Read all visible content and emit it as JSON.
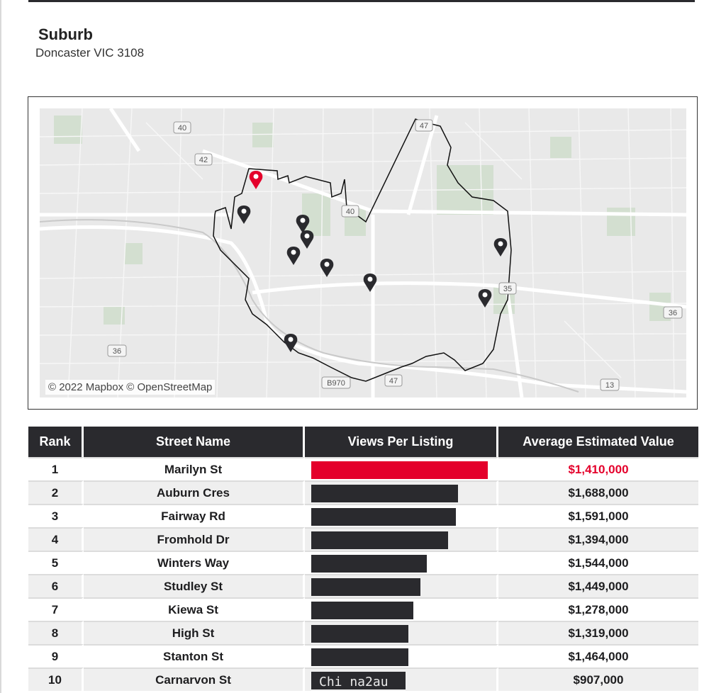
{
  "header": {
    "label": "Suburb",
    "suburb": "Doncaster VIC 3108"
  },
  "map": {
    "attribution": "© 2022 Mapbox © OpenStreetMap",
    "road_shields": [
      "40",
      "42",
      "40",
      "47",
      "35",
      "36",
      "36",
      "B970",
      "47",
      "13"
    ]
  },
  "table": {
    "columns": [
      "Rank",
      "Street Name",
      "Views Per Listing",
      "Average Estimated Value"
    ],
    "rows": [
      {
        "rank": "1",
        "street": "Marilyn St",
        "views_fraction": 1.0,
        "value": "$1,410,000"
      },
      {
        "rank": "2",
        "street": "Auburn Cres",
        "views_fraction": 0.83,
        "value": "$1,688,000"
      },
      {
        "rank": "3",
        "street": "Fairway Rd",
        "views_fraction": 0.82,
        "value": "$1,591,000"
      },
      {
        "rank": "4",
        "street": "Fromhold Dr",
        "views_fraction": 0.776,
        "value": "$1,394,000"
      },
      {
        "rank": "5",
        "street": "Winters Way",
        "views_fraction": 0.655,
        "value": "$1,544,000"
      },
      {
        "rank": "6",
        "street": "Studley St",
        "views_fraction": 0.617,
        "value": "$1,449,000"
      },
      {
        "rank": "7",
        "street": "Kiewa St",
        "views_fraction": 0.58,
        "value": "$1,278,000"
      },
      {
        "rank": "8",
        "street": "High St",
        "views_fraction": 0.55,
        "value": "$1,319,000"
      },
      {
        "rank": "9",
        "street": "Stanton St",
        "views_fraction": 0.55,
        "value": "$1,464,000"
      },
      {
        "rank": "10",
        "street": "Carnarvon St",
        "views_fraction": 0.536,
        "value": "$907,000"
      }
    ],
    "watermark": "Chi na2au"
  },
  "colors": {
    "accent": "#e4002b",
    "dark": "#2a2a2e",
    "row_alt": "#efefef"
  }
}
